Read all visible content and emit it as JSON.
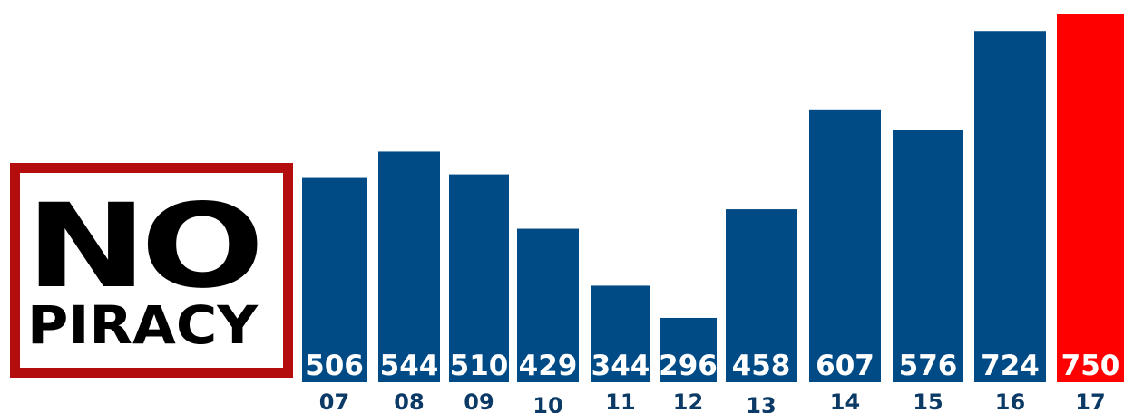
{
  "colors": {
    "bar": "#004a85",
    "highlight": "#ff0000",
    "tick_text": "#0b3a66",
    "logo_border": "#b30d0d"
  },
  "logo": {
    "line1": "NO",
    "line2": "PIRACY",
    "icon": "no-piracy-logo"
  },
  "chart_data": {
    "type": "bar",
    "categories": [
      "07",
      "08",
      "09",
      "10",
      "11",
      "12",
      "13",
      "14",
      "15",
      "16",
      "17"
    ],
    "values": [
      506,
      544,
      510,
      429,
      344,
      296,
      458,
      607,
      576,
      724,
      750
    ],
    "highlight_index": 10,
    "ylim": [
      0,
      750
    ],
    "grid": false
  }
}
